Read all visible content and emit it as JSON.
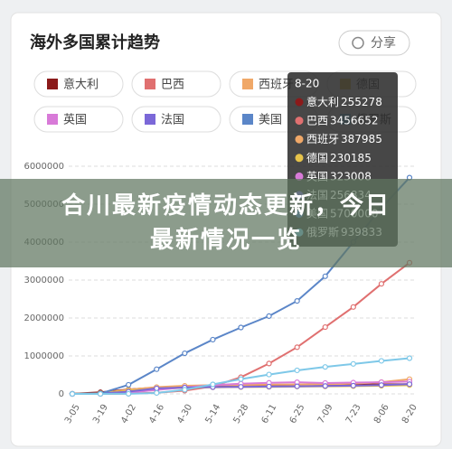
{
  "share_button": "分享",
  "banner": "合川最新疫情动态更新，今日最新情况一览",
  "chart_data": {
    "type": "line",
    "title": "海外多国累计趋势",
    "categories": [
      "3-05",
      "3-19",
      "4-02",
      "4-16",
      "4-30",
      "5-14",
      "5-28",
      "6-11",
      "6-25",
      "7-09",
      "7-23",
      "8-06",
      "8-20"
    ],
    "ylim": [
      0,
      6000000
    ],
    "yticks": [
      0,
      1000000,
      2000000,
      3000000,
      4000000,
      5000000,
      6000000
    ],
    "grid": true,
    "tooltip_index": 12,
    "series": [
      {
        "name": "意大利",
        "color": "#8b1a1a",
        "values": [
          3000,
          41000,
          115000,
          168000,
          205000,
          223000,
          232000,
          236000,
          240000,
          242000,
          245000,
          249000,
          255278
        ]
      },
      {
        "name": "巴西",
        "color": "#e07070",
        "values": [
          0,
          0,
          8000,
          30000,
          85000,
          200000,
          440000,
          800000,
          1230000,
          1760000,
          2290000,
          2900000,
          3456652
        ]
      },
      {
        "name": "西班牙",
        "color": "#f0a868",
        "values": [
          0,
          18000,
          110000,
          180000,
          213000,
          230000,
          238000,
          243000,
          248000,
          253000,
          270000,
          310000,
          387985
        ]
      },
      {
        "name": "德国",
        "color": "#e6c34a",
        "values": [
          0,
          15000,
          85000,
          135000,
          162000,
          174000,
          181000,
          186000,
          194000,
          198000,
          204000,
          213000,
          230185
        ]
      },
      {
        "name": "英国",
        "color": "#d87ad8",
        "values": [
          0,
          3000,
          34000,
          103000,
          172000,
          230000,
          268000,
          291000,
          307000,
          287000,
          297000,
          308000,
          323008
        ]
      },
      {
        "name": "法国",
        "color": "#7b68d8",
        "values": [
          0,
          10000,
          60000,
          145000,
          168000,
          178000,
          186000,
          193000,
          200000,
          208000,
          218000,
          232000,
          256834
        ]
      },
      {
        "name": "美国",
        "color": "#5b86c8",
        "values": [
          0,
          10000,
          240000,
          650000,
          1070000,
          1430000,
          1750000,
          2050000,
          2450000,
          3100000,
          4000000,
          4900000,
          5700000
        ]
      },
      {
        "name": "俄罗斯",
        "color": "#7ec8e8",
        "values": [
          0,
          0,
          3000,
          25000,
          110000,
          250000,
          390000,
          510000,
          620000,
          710000,
          790000,
          870000,
          939833
        ]
      }
    ]
  }
}
